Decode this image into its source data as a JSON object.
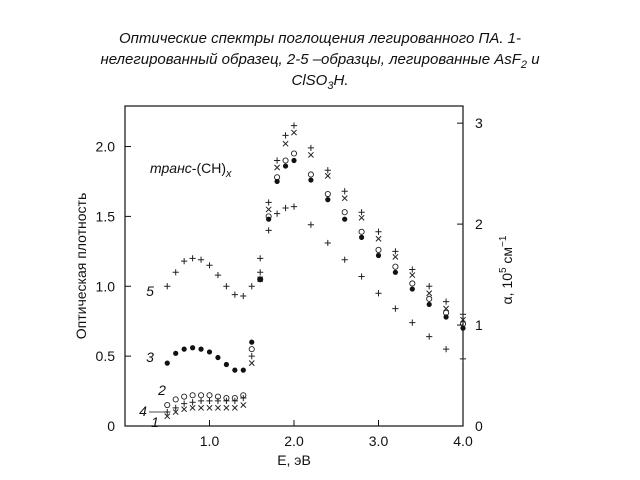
{
  "chart_data": {
    "type": "scatter",
    "title": {
      "line1": "Оптические спектры поглощения легированного ПА. 1-",
      "line2": "нелегированный образец, 2-5 –образцы, легированные AsF",
      "line2_sub": "2",
      "line2_end": " и",
      "line3": "ClSO",
      "line3_sub": "3",
      "line3_end": "H."
    },
    "x_label": "E, эВ",
    "y_label": "Оптическая плотность",
    "y2_label": {
      "main": "α, 10",
      "sup": "5",
      "unit": " см",
      "unit_sup": "−1"
    },
    "annotation": {
      "prefix": "транс",
      "main": "-(CH)",
      "sub": "x"
    },
    "x": [
      0.5,
      0.6,
      0.7,
      0.8,
      0.9,
      1.0,
      1.1,
      1.2,
      1.3,
      1.4,
      1.5,
      1.6,
      1.7,
      1.8,
      1.9,
      2.0,
      2.2,
      2.4,
      2.6,
      2.8,
      3.0,
      3.2,
      3.4,
      3.6,
      3.8,
      4.0
    ],
    "series": [
      {
        "name": "1",
        "marker": "x",
        "color": "#222222",
        "values": [
          0.07,
          0.1,
          0.12,
          0.13,
          0.13,
          0.13,
          0.13,
          0.13,
          0.13,
          0.15,
          0.45,
          1.05,
          1.55,
          1.85,
          2.02,
          2.1,
          1.94,
          1.79,
          1.63,
          1.49,
          1.34,
          1.21,
          1.08,
          0.95,
          0.84,
          0.76
        ]
      },
      {
        "name": "2",
        "marker": "o",
        "color": "#222222",
        "values": [
          0.15,
          0.19,
          0.21,
          0.22,
          0.22,
          0.22,
          0.21,
          0.2,
          0.2,
          0.22,
          0.55,
          1.05,
          1.5,
          1.78,
          1.9,
          1.95,
          1.8,
          1.66,
          1.53,
          1.39,
          1.26,
          1.14,
          1.02,
          0.91,
          0.81,
          0.73
        ]
      },
      {
        "name": "3",
        "marker": "dot",
        "color": "#111111",
        "values": [
          0.45,
          0.52,
          0.55,
          0.56,
          0.55,
          0.53,
          0.49,
          0.44,
          0.4,
          0.4,
          0.6,
          1.05,
          1.48,
          1.75,
          1.86,
          1.9,
          1.76,
          1.62,
          1.48,
          1.35,
          1.22,
          1.1,
          0.98,
          0.87,
          0.78,
          0.7
        ]
      },
      {
        "name": "4",
        "marker": "+",
        "color": "#222222",
        "values": [
          0.1,
          0.13,
          0.16,
          0.17,
          0.18,
          0.18,
          0.18,
          0.18,
          0.18,
          0.2,
          0.5,
          1.1,
          1.6,
          1.9,
          2.08,
          2.15,
          1.99,
          1.83,
          1.68,
          1.53,
          1.39,
          1.25,
          1.12,
          1.0,
          0.89,
          0.8
        ]
      },
      {
        "name": "5",
        "marker": "+",
        "color": "#222222",
        "values": [
          1.0,
          1.1,
          1.18,
          1.2,
          1.19,
          1.15,
          1.08,
          1.0,
          0.94,
          0.93,
          1.0,
          1.2,
          1.4,
          1.52,
          1.56,
          1.57,
          1.44,
          1.31,
          1.19,
          1.07,
          0.95,
          0.84,
          0.74,
          0.64,
          0.55,
          0.48
        ]
      }
    ],
    "xlim": [
      0,
      4.0
    ],
    "xticks": [
      {
        "value": 1,
        "label": "1.0"
      },
      {
        "value": 2,
        "label": "2.0"
      },
      {
        "value": 3,
        "label": "3.0"
      },
      {
        "value": 4,
        "label": "4.0"
      }
    ],
    "ylim": [
      0,
      2.29
    ],
    "yticks": [
      0,
      0.5,
      {
        "value": 1,
        "label": "1.0"
      },
      1.5,
      {
        "value": 2,
        "label": "2.0"
      }
    ],
    "y2lim": [
      0,
      3.17
    ],
    "y2ticks": [
      0,
      1,
      2,
      3
    ]
  }
}
